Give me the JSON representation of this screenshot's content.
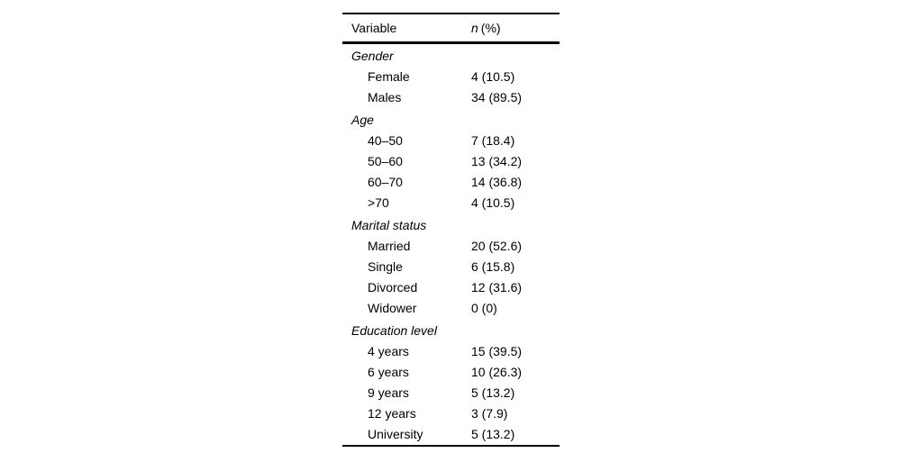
{
  "table": {
    "header": {
      "variable": "Variable",
      "n_italic": "n",
      "n_rest": "(%)"
    },
    "sections": [
      {
        "label": "Gender",
        "rows": [
          {
            "name": "Female",
            "value": "4 (10.5)"
          },
          {
            "name": "Males",
            "value": "34 (89.5)"
          }
        ]
      },
      {
        "label": "Age",
        "rows": [
          {
            "name": "40–50",
            "value": "7 (18.4)"
          },
          {
            "name": "50–60",
            "value": "13 (34.2)"
          },
          {
            "name": "60–70",
            "value": "14 (36.8)"
          },
          {
            "name": ">70",
            "value": "4 (10.5)"
          }
        ]
      },
      {
        "label": "Marital status",
        "rows": [
          {
            "name": "Married",
            "value": "20 (52.6)"
          },
          {
            "name": "Single",
            "value": "6 (15.8)"
          },
          {
            "name": "Divorced",
            "value": "12 (31.6)"
          },
          {
            "name": "Widower",
            "value": "0 (0)"
          }
        ]
      },
      {
        "label": "Education level",
        "rows": [
          {
            "name": "4 years",
            "value": "15 (39.5)"
          },
          {
            "name": "6 years",
            "value": "10 (26.3)"
          },
          {
            "name": "9 years",
            "value": "5 (13.2)"
          },
          {
            "name": "12 years",
            "value": "3 (7.9)"
          },
          {
            "name": "University",
            "value": "5 (13.2)"
          }
        ]
      }
    ]
  }
}
